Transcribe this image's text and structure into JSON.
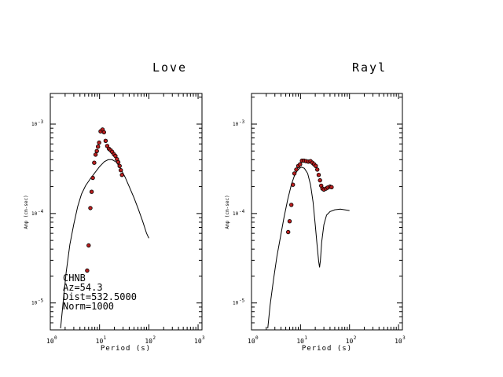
{
  "chart_data": [
    {
      "type": "scatter",
      "title": "Love",
      "xlabel": "Period (s)",
      "ylabel": "Amp (cm-sec)",
      "x_scale": "log",
      "y_scale": "log",
      "xlim": [
        1,
        1200
      ],
      "ylim": [
        5e-06,
        0.0022
      ],
      "x_ticks": [
        {
          "base": "10",
          "exp": "0",
          "value": 1
        },
        {
          "base": "10",
          "exp": "1",
          "value": 10
        },
        {
          "base": "10",
          "exp": "2",
          "value": 100
        },
        {
          "base": "10",
          "exp": "3",
          "value": 1000
        }
      ],
      "y_ticks": [
        {
          "base": "10",
          "exp": "-5",
          "value": 1e-05
        },
        {
          "base": "10",
          "exp": "-4",
          "value": 0.0001
        },
        {
          "base": "10",
          "exp": "-3",
          "value": 0.001
        }
      ],
      "info_lines": [
        "CHNB",
        "Az=54.3",
        "Dist=532.5000",
        "Norm=1000"
      ],
      "series": [
        {
          "kind": "line",
          "color": "#000000",
          "points": [
            [
              1.62,
              5.2e-06
            ],
            [
              1.85,
              1.1e-05
            ],
            [
              2.1,
              2.2e-05
            ],
            [
              2.5,
              4.5e-05
            ],
            [
              3.0,
              7.6e-05
            ],
            [
              3.6,
              0.00012
            ],
            [
              4.3,
              0.000165
            ],
            [
              5.2,
              0.000205
            ],
            [
              6.5,
              0.000245
            ],
            [
              8.0,
              0.000285
            ],
            [
              10,
              0.000335
            ],
            [
              12.5,
              0.00038
            ],
            [
              15,
              0.0004
            ],
            [
              18,
              0.0004
            ],
            [
              22,
              0.000375
            ],
            [
              27,
              0.000315
            ],
            [
              33,
              0.000255
            ],
            [
              40,
              0.0002
            ],
            [
              50,
              0.00015
            ],
            [
              62,
              0.00011
            ],
            [
              75,
              8.2e-05
            ],
            [
              90,
              6e-05
            ],
            [
              100,
              5.3e-05
            ]
          ]
        },
        {
          "kind": "points",
          "color": "#b81e1e",
          "points": [
            [
              5.6,
              2.3e-05
            ],
            [
              6.0,
              4.4e-05
            ],
            [
              6.5,
              0.000115
            ],
            [
              6.9,
              0.000175
            ],
            [
              7.3,
              0.00025
            ],
            [
              7.8,
              0.00037
            ],
            [
              8.3,
              0.000455
            ],
            [
              8.8,
              0.0005
            ],
            [
              9.3,
              0.00056
            ],
            [
              9.8,
              0.00062
            ],
            [
              10.5,
              0.00083
            ],
            [
              11.5,
              0.00087
            ],
            [
              12.3,
              0.00081
            ],
            [
              13.3,
              0.00065
            ],
            [
              14.3,
              0.00057
            ],
            [
              15.5,
              0.00053
            ],
            [
              16.8,
              0.00051
            ],
            [
              18,
              0.00049
            ],
            [
              19.5,
              0.00046
            ],
            [
              21,
              0.00044
            ],
            [
              22.5,
              0.000405
            ],
            [
              24,
              0.000375
            ],
            [
              25.5,
              0.00034
            ],
            [
              27,
              0.000305
            ],
            [
              28.5,
              0.00027
            ]
          ]
        }
      ]
    },
    {
      "type": "scatter",
      "title": "Rayl",
      "xlabel": "Period (s)",
      "ylabel": "Amp (cm-sec)",
      "x_scale": "log",
      "y_scale": "log",
      "xlim": [
        1,
        1200
      ],
      "ylim": [
        5e-06,
        0.0022
      ],
      "x_ticks": [
        {
          "base": "10",
          "exp": "0",
          "value": 1
        },
        {
          "base": "10",
          "exp": "1",
          "value": 10
        },
        {
          "base": "10",
          "exp": "2",
          "value": 100
        },
        {
          "base": "10",
          "exp": "3",
          "value": 1000
        }
      ],
      "y_ticks": [
        {
          "base": "10",
          "exp": "-5",
          "value": 1e-05
        },
        {
          "base": "10",
          "exp": "-4",
          "value": 0.0001
        },
        {
          "base": "10",
          "exp": "-3",
          "value": 0.001
        }
      ],
      "series": [
        {
          "kind": "line",
          "color": "#000000",
          "points": [
            [
              2.15,
              5.2e-06
            ],
            [
              2.4,
              9.5e-06
            ],
            [
              2.8,
              1.8e-05
            ],
            [
              3.3,
              3.3e-05
            ],
            [
              3.9,
              5.5e-05
            ],
            [
              4.6,
              9e-05
            ],
            [
              5.5,
              0.000145
            ],
            [
              6.5,
              0.00021
            ],
            [
              7.5,
              0.000265
            ],
            [
              8.5,
              0.0003
            ],
            [
              9.5,
              0.00032
            ],
            [
              10.5,
              0.00033
            ],
            [
              12,
              0.00032
            ],
            [
              14,
              0.00028
            ],
            [
              16,
              0.00021
            ],
            [
              18,
              0.000135
            ],
            [
              20,
              7.5e-05
            ],
            [
              22,
              4.2e-05
            ],
            [
              23.5,
              2.9e-05
            ],
            [
              24.5,
              2.5e-05
            ],
            [
              25.5,
              3e-05
            ],
            [
              27,
              4.8e-05
            ],
            [
              30,
              7.5e-05
            ],
            [
              34,
              9.6e-05
            ],
            [
              40,
              0.000105
            ],
            [
              50,
              0.00011
            ],
            [
              65,
              0.000112
            ],
            [
              80,
              0.00011
            ],
            [
              100,
              0.000108
            ]
          ]
        },
        {
          "kind": "points",
          "color": "#b81e1e",
          "points": [
            [
              5.6,
              6.2e-05
            ],
            [
              6.0,
              8.2e-05
            ],
            [
              6.5,
              0.000125
            ],
            [
              7.0,
              0.00021
            ],
            [
              7.5,
              0.00028
            ],
            [
              8.2,
              0.00031
            ],
            [
              9.0,
              0.00034
            ],
            [
              9.8,
              0.000355
            ],
            [
              10.7,
              0.00039
            ],
            [
              11.8,
              0.00039
            ],
            [
              13,
              0.000385
            ],
            [
              14.5,
              0.00038
            ],
            [
              16,
              0.000385
            ],
            [
              17.5,
              0.00037
            ],
            [
              19,
              0.000355
            ],
            [
              20.5,
              0.00034
            ],
            [
              22,
              0.00031
            ],
            [
              23.5,
              0.00027
            ],
            [
              25,
              0.000235
            ],
            [
              26.5,
              0.000205
            ],
            [
              28,
              0.00019
            ],
            [
              30,
              0.000185
            ],
            [
              33,
              0.00019
            ],
            [
              36,
              0.000195
            ],
            [
              40,
              0.0002
            ],
            [
              43,
              0.000197
            ]
          ]
        }
      ]
    }
  ]
}
